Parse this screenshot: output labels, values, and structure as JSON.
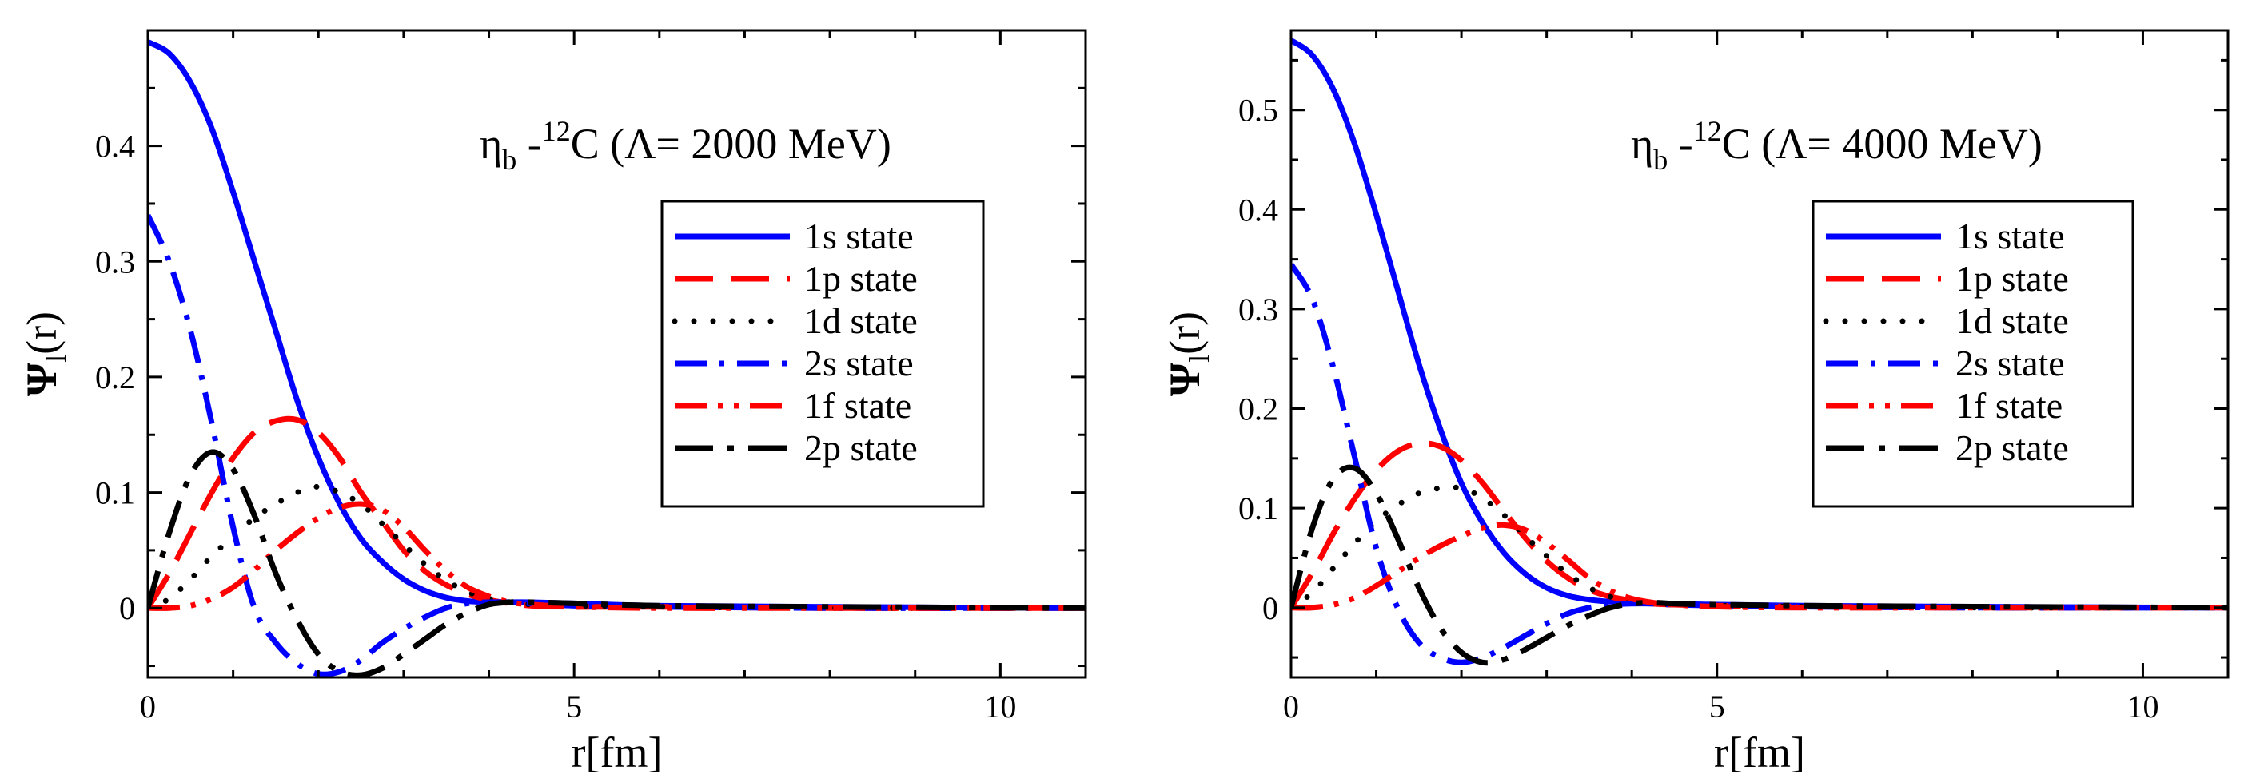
{
  "chart_data": [
    {
      "type": "line",
      "annotation": {
        "particle": "η",
        "particle_sub": "b",
        "dash": "-",
        "isotope_sup": "12",
        "element": "C",
        "lambda_text": "(Λ= 2000 MeV)"
      },
      "xlabel": "r[fm]",
      "ylabel": {
        "main": "Ψ",
        "sub": "l",
        "tail": "(r)"
      },
      "xlim": [
        0,
        11
      ],
      "ylim": [
        -0.06,
        0.5
      ],
      "xticks": [
        0,
        5,
        10
      ],
      "xtick_labels": [
        "0",
        "5",
        "10"
      ],
      "yticks": [
        0,
        0.1,
        0.2,
        0.3,
        0.4
      ],
      "ytick_labels": [
        "0",
        "0.1",
        "0.2",
        "0.3",
        "0.4"
      ],
      "legend_position": "right",
      "series": [
        {
          "name": "1s state",
          "color": "#0000ff",
          "style": "solid",
          "x": [
            0,
            0.25,
            0.5,
            0.75,
            1.0,
            1.25,
            1.5,
            1.75,
            2.0,
            2.25,
            2.5,
            2.75,
            3.0,
            3.25,
            3.5,
            3.75,
            4.0,
            4.25,
            4.5,
            5.0,
            6.0,
            8.0,
            11.0
          ],
          "y": [
            0.49,
            0.48,
            0.455,
            0.415,
            0.36,
            0.3,
            0.24,
            0.18,
            0.13,
            0.09,
            0.06,
            0.04,
            0.025,
            0.015,
            0.009,
            0.006,
            0.005,
            0.005,
            0.005,
            0.004,
            0.002,
            0.001,
            0.0
          ]
        },
        {
          "name": "1p state",
          "color": "#ff0000",
          "style": "dashed",
          "x": [
            0,
            0.25,
            0.5,
            0.75,
            1.0,
            1.25,
            1.5,
            1.75,
            2.0,
            2.25,
            2.5,
            2.75,
            3.0,
            3.25,
            3.5,
            3.75,
            4.0,
            4.25,
            4.5,
            5.0,
            6.0,
            8.0,
            11.0
          ],
          "y": [
            0.0,
            0.03,
            0.065,
            0.1,
            0.13,
            0.152,
            0.162,
            0.163,
            0.152,
            0.13,
            0.1,
            0.075,
            0.05,
            0.032,
            0.02,
            0.012,
            0.007,
            0.004,
            0.002,
            0.001,
            0.001,
            0.0,
            0.0
          ]
        },
        {
          "name": "1d state",
          "color": "#000000",
          "style": "dotted",
          "x": [
            0,
            0.25,
            0.5,
            0.75,
            1.0,
            1.25,
            1.5,
            1.75,
            2.0,
            2.25,
            2.5,
            2.75,
            3.0,
            3.25,
            3.5,
            3.75,
            4.0,
            4.25,
            4.5,
            5.0,
            6.0,
            8.0,
            11.0
          ],
          "y": [
            0.0,
            0.008,
            0.025,
            0.045,
            0.062,
            0.078,
            0.09,
            0.1,
            0.105,
            0.1,
            0.09,
            0.073,
            0.055,
            0.038,
            0.024,
            0.014,
            0.008,
            0.005,
            0.003,
            0.002,
            0.001,
            0.0,
            0.0
          ]
        },
        {
          "name": "2s state",
          "color": "#0000ff",
          "style": "dashdot",
          "x": [
            0,
            0.25,
            0.5,
            0.75,
            1.0,
            1.25,
            1.5,
            1.75,
            2.0,
            2.25,
            2.5,
            2.75,
            3.0,
            3.25,
            3.5,
            3.75,
            4.0,
            4.25,
            4.5,
            5.0,
            6.0,
            8.0,
            11.0
          ],
          "y": [
            0.34,
            0.3,
            0.24,
            0.16,
            0.07,
            0.0,
            -0.03,
            -0.048,
            -0.057,
            -0.055,
            -0.045,
            -0.03,
            -0.018,
            -0.008,
            0.0,
            0.004,
            0.005,
            0.005,
            0.004,
            0.002,
            0.001,
            0.0,
            0.0
          ]
        },
        {
          "name": "1f state",
          "color": "#ff0000",
          "style": "dashdotdot",
          "x": [
            0,
            0.25,
            0.5,
            0.75,
            1.0,
            1.25,
            1.5,
            1.75,
            2.0,
            2.25,
            2.5,
            2.75,
            3.0,
            3.25,
            3.5,
            3.75,
            4.0,
            4.25,
            4.5,
            5.0,
            6.0,
            8.0,
            11.0
          ],
          "y": [
            0.0,
            0.0,
            0.002,
            0.008,
            0.018,
            0.033,
            0.05,
            0.065,
            0.078,
            0.087,
            0.09,
            0.085,
            0.07,
            0.05,
            0.032,
            0.018,
            0.01,
            0.005,
            0.003,
            0.001,
            0.0,
            0.0,
            0.0
          ]
        },
        {
          "name": "2p state",
          "color": "#000000",
          "style": "longdashdot",
          "x": [
            0,
            0.25,
            0.5,
            0.75,
            1.0,
            1.25,
            1.5,
            1.75,
            2.0,
            2.25,
            2.5,
            2.75,
            3.0,
            3.25,
            3.5,
            3.75,
            4.0,
            4.25,
            4.5,
            5.0,
            6.0,
            8.0,
            11.0
          ],
          "y": [
            0.0,
            0.065,
            0.115,
            0.135,
            0.12,
            0.08,
            0.03,
            -0.01,
            -0.04,
            -0.055,
            -0.058,
            -0.052,
            -0.04,
            -0.027,
            -0.014,
            -0.004,
            0.003,
            0.005,
            0.005,
            0.004,
            0.002,
            0.001,
            0.0
          ]
        }
      ]
    },
    {
      "type": "line",
      "annotation": {
        "particle": "η",
        "particle_sub": "b",
        "dash": "-",
        "isotope_sup": "12",
        "element": "C",
        "lambda_text": "(Λ= 4000 MeV)"
      },
      "xlabel": "r[fm]",
      "ylabel": {
        "main": "Ψ",
        "sub": "l",
        "tail": "(r)"
      },
      "xlim": [
        0,
        11
      ],
      "ylim": [
        -0.07,
        0.58
      ],
      "xticks": [
        0,
        5,
        10
      ],
      "xtick_labels": [
        "0",
        "5",
        "10"
      ],
      "yticks": [
        0,
        0.1,
        0.2,
        0.3,
        0.4,
        0.5
      ],
      "ytick_labels": [
        "0",
        "0.1",
        "0.2",
        "0.3",
        "0.4",
        "0.5"
      ],
      "legend_position": "right",
      "series": [
        {
          "name": "1s state",
          "color": "#0000ff",
          "style": "solid",
          "x": [
            0,
            0.25,
            0.5,
            0.75,
            1.0,
            1.25,
            1.5,
            1.75,
            2.0,
            2.25,
            2.5,
            2.75,
            3.0,
            3.25,
            3.5,
            3.75,
            4.0,
            4.25,
            4.5,
            5.0,
            6.0,
            8.0,
            11.0
          ],
          "y": [
            0.57,
            0.555,
            0.52,
            0.465,
            0.395,
            0.32,
            0.245,
            0.18,
            0.125,
            0.085,
            0.055,
            0.034,
            0.02,
            0.012,
            0.008,
            0.006,
            0.005,
            0.004,
            0.004,
            0.003,
            0.002,
            0.001,
            0.0
          ]
        },
        {
          "name": "1p state",
          "color": "#ff0000",
          "style": "dashed",
          "x": [
            0,
            0.25,
            0.5,
            0.75,
            1.0,
            1.25,
            1.5,
            1.75,
            2.0,
            2.25,
            2.5,
            2.75,
            3.0,
            3.25,
            3.5,
            3.75,
            4.0,
            4.25,
            4.5,
            5.0,
            6.0,
            8.0,
            11.0
          ],
          "y": [
            0.0,
            0.035,
            0.075,
            0.11,
            0.138,
            0.157,
            0.165,
            0.162,
            0.148,
            0.125,
            0.097,
            0.07,
            0.047,
            0.03,
            0.018,
            0.011,
            0.007,
            0.004,
            0.003,
            0.002,
            0.001,
            0.0,
            0.0
          ]
        },
        {
          "name": "1d state",
          "color": "#000000",
          "style": "dotted",
          "x": [
            0,
            0.25,
            0.5,
            0.75,
            1.0,
            1.25,
            1.5,
            1.75,
            2.0,
            2.25,
            2.5,
            2.75,
            3.0,
            3.25,
            3.5,
            3.75,
            4.0,
            4.25,
            4.5,
            5.0,
            6.0,
            8.0,
            11.0
          ],
          "y": [
            0.0,
            0.015,
            0.04,
            0.065,
            0.087,
            0.103,
            0.115,
            0.12,
            0.12,
            0.11,
            0.093,
            0.072,
            0.052,
            0.034,
            0.02,
            0.011,
            0.006,
            0.004,
            0.003,
            0.002,
            0.001,
            0.0,
            0.0
          ]
        },
        {
          "name": "2s state",
          "color": "#0000ff",
          "style": "dashdot",
          "x": [
            0,
            0.25,
            0.5,
            0.75,
            1.0,
            1.25,
            1.5,
            1.75,
            2.0,
            2.25,
            2.5,
            2.75,
            3.0,
            3.25,
            3.5,
            3.75,
            4.0,
            4.25,
            4.5,
            5.0,
            6.0,
            8.0,
            11.0
          ],
          "y": [
            0.345,
            0.31,
            0.24,
            0.15,
            0.06,
            0.0,
            -0.035,
            -0.05,
            -0.055,
            -0.05,
            -0.04,
            -0.028,
            -0.016,
            -0.006,
            0.0,
            0.003,
            0.004,
            0.004,
            0.003,
            0.002,
            0.001,
            0.0,
            0.0
          ]
        },
        {
          "name": "1f state",
          "color": "#ff0000",
          "style": "dashdotdot",
          "x": [
            0,
            0.25,
            0.5,
            0.75,
            1.0,
            1.25,
            1.5,
            1.75,
            2.0,
            2.25,
            2.5,
            2.75,
            3.0,
            3.25,
            3.5,
            3.75,
            4.0,
            4.25,
            4.5,
            5.0,
            6.0,
            8.0,
            11.0
          ],
          "y": [
            0.0,
            0.0,
            0.003,
            0.01,
            0.022,
            0.036,
            0.05,
            0.062,
            0.072,
            0.08,
            0.083,
            0.078,
            0.065,
            0.048,
            0.03,
            0.017,
            0.009,
            0.005,
            0.003,
            0.001,
            0.0,
            0.0,
            0.0
          ]
        },
        {
          "name": "2p state",
          "color": "#000000",
          "style": "longdashdot",
          "x": [
            0,
            0.25,
            0.5,
            0.75,
            1.0,
            1.25,
            1.5,
            1.75,
            2.0,
            2.25,
            2.5,
            2.75,
            3.0,
            3.25,
            3.5,
            3.75,
            4.0,
            4.25,
            4.5,
            5.0,
            6.0,
            8.0,
            11.0
          ],
          "y": [
            0.0,
            0.08,
            0.13,
            0.14,
            0.115,
            0.07,
            0.02,
            -0.02,
            -0.045,
            -0.055,
            -0.052,
            -0.042,
            -0.03,
            -0.018,
            -0.008,
            0.0,
            0.004,
            0.005,
            0.004,
            0.003,
            0.002,
            0.001,
            0.0
          ]
        }
      ]
    }
  ]
}
